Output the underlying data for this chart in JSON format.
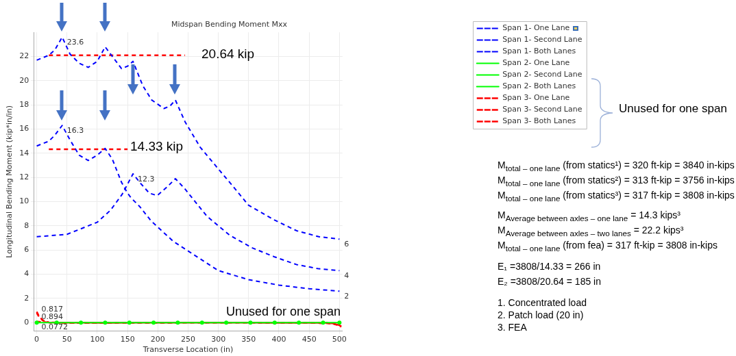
{
  "chart_data": {
    "type": "line",
    "title": "Midspan Bending Moment Mxx",
    "xlabel": "Transverse Location (in)",
    "ylabel": "Longitudinal Bending Moment (kip*in/in)",
    "xlim": [
      -5,
      505
    ],
    "ylim": [
      -0.7,
      24
    ],
    "xticks": [
      0,
      50,
      100,
      150,
      200,
      250,
      300,
      350,
      400,
      450,
      500
    ],
    "yticks": [
      0,
      2,
      4,
      6,
      8,
      10,
      12,
      14,
      16,
      18,
      20,
      22
    ],
    "grid": true,
    "legend": "right",
    "line_style": "dashed",
    "marker": "none",
    "series": [
      {
        "name": "Span 1- One Lane",
        "color": "#0000ff",
        "x": [
          0,
          20,
          30,
          42,
          55,
          70,
          85,
          100,
          113,
          125,
          140,
          150,
          156,
          170,
          189,
          226,
          263,
          300,
          350,
          400,
          450,
          500
        ],
        "values": [
          14.6,
          15,
          15.5,
          16.3,
          15.1,
          13.85,
          13.4,
          13.85,
          14.4,
          13.5,
          11.6,
          10.7,
          10.3,
          9.6,
          8.4,
          6.7,
          5.5,
          4.3,
          3.55,
          3.1,
          2.8,
          2.6
        ]
      },
      {
        "name": "Span 1- Second Lane",
        "color": "#0000ff",
        "x": [
          0,
          50,
          100,
          122,
          141,
          159,
          170,
          186,
          199,
          215,
          229,
          244,
          281,
          318,
          355,
          392,
          429,
          466,
          500
        ],
        "values": [
          7.1,
          7.3,
          8.3,
          9.3,
          10.6,
          12.3,
          11.6,
          10.7,
          10.5,
          11.2,
          11.9,
          11.1,
          8.8,
          7.25,
          6.2,
          5.45,
          4.8,
          4.45,
          4.3
        ]
      },
      {
        "name": "Span 1- Both Lanes",
        "color": "#0000ff",
        "x": [
          0,
          20,
          30,
          42,
          55,
          70,
          85,
          100,
          113,
          125,
          140,
          150,
          159,
          175,
          190,
          210,
          220,
          229,
          245,
          270,
          300,
          322,
          350,
          392,
          429,
          466,
          500
        ],
        "values": [
          21.7,
          22.1,
          22.55,
          23.6,
          22.2,
          21.45,
          21.1,
          21.6,
          22.8,
          22,
          21,
          21.2,
          21.6,
          19.6,
          18.4,
          17.7,
          17.9,
          18.4,
          16.6,
          14.5,
          12.7,
          11.4,
          9.7,
          8.5,
          7.6,
          7.1,
          6.9
        ]
      },
      {
        "name": "Span 2- One Lane",
        "color": "#00ff00",
        "line_style": "solid",
        "marker": "circle",
        "x": [
          0,
          33,
          73,
          113,
          153,
          193,
          233,
          273,
          313,
          353,
          393,
          433,
          473,
          500
        ],
        "values": [
          0,
          0,
          0,
          0,
          0,
          0,
          0,
          0,
          0,
          0,
          0,
          0,
          0,
          0
        ]
      },
      {
        "name": "Span 2- Second Lane",
        "color": "#00ff00",
        "line_style": "solid",
        "marker": "circle"
      },
      {
        "name": "Span 2- Both Lanes",
        "color": "#00ff00",
        "line_style": "solid",
        "marker": "circle"
      },
      {
        "name": "Span 3- One Lane",
        "color": "#ff0000",
        "x": [
          0,
          3,
          6,
          10,
          15,
          20,
          30,
          60,
          150,
          300,
          450,
          480,
          490,
          495,
          500,
          503
        ],
        "values": [
          0.9,
          0.6,
          0.4,
          0.2,
          0.08,
          0.02,
          -0.02,
          -0.03,
          -0.02,
          0,
          -0.02,
          -0.05,
          -0.1,
          -0.17,
          -0.25,
          -0.35
        ]
      },
      {
        "name": "Span 3- Second Lane",
        "color": "#ff0000",
        "x": [
          0,
          10,
          20,
          40,
          100,
          300,
          480,
          495,
          503
        ],
        "values": [
          0.08,
          0.05,
          0.02,
          0,
          -0.01,
          0,
          -0.02,
          -0.1,
          -0.3
        ]
      },
      {
        "name": "Span 3- Both Lanes",
        "color": "#ff0000",
        "x": [
          0,
          3,
          6,
          10,
          15,
          20,
          30,
          60,
          150,
          300,
          450,
          480,
          490,
          500
        ],
        "values": [
          0.8,
          0.55,
          0.36,
          0.18,
          0.07,
          0.02,
          -0.02,
          -0.03,
          -0.02,
          0,
          -0.02,
          -0.05,
          -0.1,
          -0.2
        ]
      },
      {
        "color": "#ff0000",
        "x": [
          20,
          245
        ],
        "values": [
          22.1,
          22.1
        ]
      },
      {
        "color": "#ff0000",
        "x": [
          20,
          150
        ],
        "values": [
          14.33,
          14.33
        ]
      }
    ],
    "annotations": [
      {
        "text": "23.6",
        "x": 42,
        "y": 23.6
      },
      {
        "text": "16.3",
        "x": 42,
        "y": 16.3
      },
      {
        "text": "12.3",
        "x": 159,
        "y": 12.3
      },
      {
        "text": "6",
        "x": 500,
        "y": 6.9
      },
      {
        "text": "4",
        "x": 500,
        "y": 4.3
      },
      {
        "text": "2",
        "x": 500,
        "y": 2.6
      },
      {
        "text": "0.894",
        "x": 0,
        "y": 0.894
      },
      {
        "text": "0.817",
        "x": 0,
        "y": 0.817
      },
      {
        "text": "0.0772",
        "x": 0,
        "y": 0.0772
      },
      "20.64 kip",
      "14.33 kip",
      "Unused for one span",
      "Unused for one span",
      "M$_{total – one lane}$ (from statics¹) = 320 ft-kip = 3840 in-kips",
      "M$_{total – one lane}$ (from statics²) = 313 ft-kip = 3756 in-kips",
      "M$_{total – one lane}$ (from statics³) = 317 ft-kip = 3808 in-kips",
      "M$_{Average between axles – one lane}$ = 14.3 kips³",
      "M$_{Average between axles – two lanes}$ = 22.2 kips³",
      "M$_{total – one lane}$ (from fea) = 317 ft-kip = 3808 in-kips",
      "E₁ =3808/14.33 = 266 in",
      "E₂ =3808/20.64 = 185 in",
      "1. Concentrated load",
      "2. Patch load (20 in)",
      "3. FEA"
    ]
  }
}
